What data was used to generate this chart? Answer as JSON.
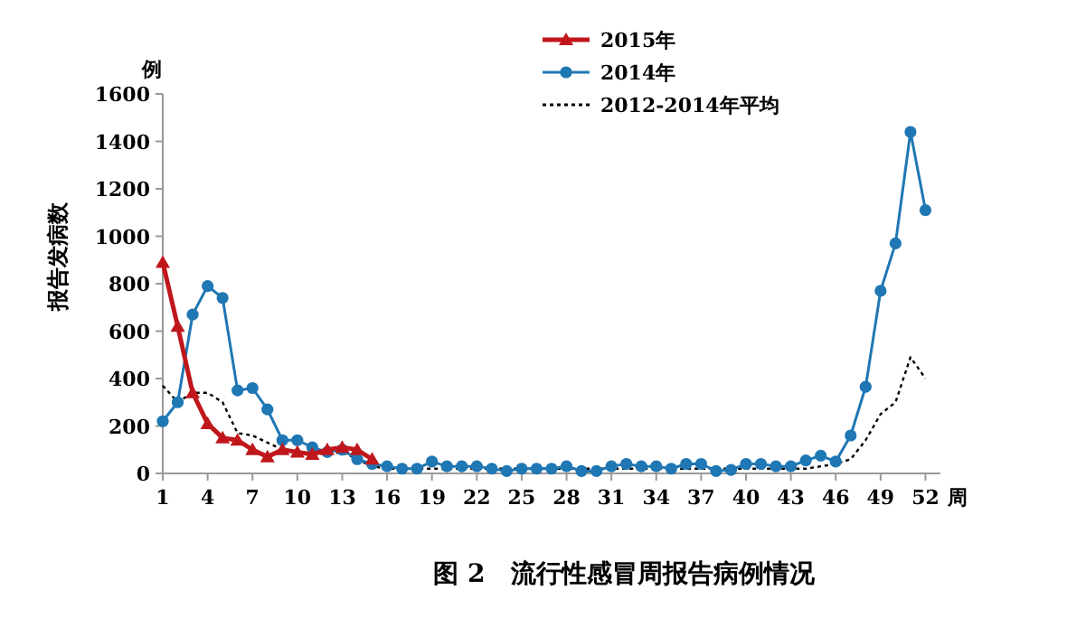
{
  "chart_data": {
    "type": "line",
    "title": "图 2　流行性感冒周报告病例情况",
    "xlabel": "周",
    "ylabel": "报告发病数",
    "annotations": [
      "例"
    ],
    "x": [
      1,
      2,
      3,
      4,
      5,
      6,
      7,
      8,
      9,
      10,
      11,
      12,
      13,
      14,
      15,
      16,
      17,
      18,
      19,
      20,
      21,
      22,
      23,
      24,
      25,
      26,
      27,
      28,
      29,
      30,
      31,
      32,
      33,
      34,
      35,
      36,
      37,
      38,
      39,
      40,
      41,
      42,
      43,
      44,
      45,
      46,
      47,
      48,
      49,
      50,
      51,
      52
    ],
    "xlim": [
      1,
      53
    ],
    "xticks": [
      1,
      4,
      7,
      10,
      13,
      16,
      19,
      22,
      25,
      28,
      31,
      34,
      37,
      40,
      43,
      46,
      49,
      52
    ],
    "ylim": [
      0,
      1600
    ],
    "yticks": [
      0,
      200,
      400,
      600,
      800,
      1000,
      1200,
      1400,
      1600
    ],
    "legend": "top right",
    "grid": false,
    "series": [
      {
        "name": "2015年",
        "color": "#c0171c",
        "marker": "triangle",
        "line_style": "solid",
        "x": [
          1,
          2,
          3,
          4,
          5,
          6,
          7,
          8,
          9,
          10,
          11,
          12,
          13,
          14,
          15
        ],
        "values": [
          890,
          620,
          340,
          210,
          150,
          140,
          100,
          70,
          100,
          90,
          80,
          100,
          110,
          100,
          60
        ]
      },
      {
        "name": "2014年",
        "color": "#1f77b4",
        "marker": "circle",
        "line_style": "solid",
        "values": [
          220,
          300,
          670,
          790,
          740,
          350,
          360,
          270,
          140,
          140,
          110,
          90,
          100,
          60,
          40,
          30,
          20,
          20,
          50,
          30,
          30,
          30,
          20,
          10,
          20,
          20,
          20,
          30,
          10,
          10,
          30,
          40,
          30,
          30,
          20,
          40,
          40,
          10,
          15,
          40,
          40,
          30,
          30,
          55,
          75,
          50,
          160,
          365,
          770,
          970,
          1440,
          1110
        ]
      },
      {
        "name": "2012-2014年平均",
        "color": "#000000",
        "marker": "none",
        "line_style": "dotted",
        "values": [
          370,
          300,
          340,
          340,
          300,
          170,
          160,
          130,
          100,
          90,
          90,
          80,
          90,
          60,
          30,
          20,
          20,
          20,
          20,
          20,
          20,
          20,
          20,
          20,
          20,
          20,
          20,
          20,
          20,
          20,
          20,
          20,
          20,
          20,
          20,
          20,
          20,
          20,
          20,
          20,
          20,
          20,
          20,
          20,
          30,
          40,
          60,
          140,
          250,
          300,
          490,
          400
        ]
      }
    ]
  }
}
